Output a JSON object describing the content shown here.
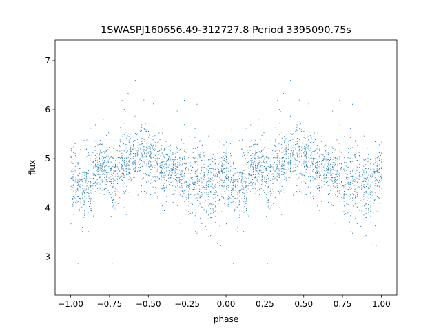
{
  "chart_data": {
    "type": "scatter",
    "title": "1SWASPJ160656.49-312727.8 Period 3395090.75s",
    "xlabel": "phase",
    "ylabel": "flux",
    "xlim": [
      -1.1,
      1.1
    ],
    "ylim": [
      2.22,
      7.42
    ],
    "x_ticks": [
      -1.0,
      -0.75,
      -0.5,
      -0.25,
      0.0,
      0.25,
      0.5,
      0.75,
      1.0
    ],
    "x_tick_labels": [
      "−1.00",
      "−0.75",
      "−0.50",
      "−0.25",
      "0.00",
      "0.25",
      "0.50",
      "0.75",
      "1.00"
    ],
    "y_ticks": [
      3,
      4,
      5,
      6,
      7
    ],
    "y_tick_labels": [
      "3",
      "4",
      "5",
      "6",
      "7"
    ],
    "grid": false,
    "legend": "none",
    "marker_color": "#1f77b4",
    "flux_profile": {
      "note_free_values": true,
      "phase": [
        0.0,
        0.02,
        0.05,
        0.08,
        0.1,
        0.13,
        0.15,
        0.18,
        0.2,
        0.23,
        0.25,
        0.28,
        0.3,
        0.33,
        0.35,
        0.38,
        0.4,
        0.43,
        0.45,
        0.48,
        0.5,
        0.52,
        0.55,
        0.58,
        0.6,
        0.63,
        0.65,
        0.68,
        0.7,
        0.73,
        0.75,
        0.78,
        0.8,
        0.83,
        0.85,
        0.88,
        0.9,
        0.93,
        0.95,
        0.98,
        1.0
      ],
      "median_flux": [
        4.5,
        4.45,
        4.35,
        4.4,
        4.55,
        4.5,
        4.75,
        4.8,
        4.85,
        4.75,
        4.7,
        4.6,
        4.75,
        4.9,
        4.85,
        4.95,
        5.05,
        5.1,
        5.1,
        5.15,
        5.05,
        4.95,
        4.9,
        4.85,
        4.8,
        4.85,
        4.8,
        4.75,
        4.75,
        4.7,
        4.55,
        4.6,
        4.65,
        4.55,
        4.45,
        4.3,
        4.4,
        4.35,
        4.6,
        4.75,
        4.7
      ],
      "spread": [
        0.45,
        0.5,
        0.55,
        0.5,
        0.45,
        0.45,
        0.4,
        0.35,
        0.35,
        0.35,
        0.4,
        0.45,
        0.35,
        0.45,
        0.45,
        0.35,
        0.35,
        0.4,
        0.4,
        0.45,
        0.45,
        0.4,
        0.35,
        0.35,
        0.35,
        0.35,
        0.35,
        0.35,
        0.35,
        0.35,
        0.4,
        0.4,
        0.45,
        0.45,
        0.45,
        0.5,
        0.45,
        0.45,
        0.4,
        0.4,
        0.4
      ]
    }
  }
}
